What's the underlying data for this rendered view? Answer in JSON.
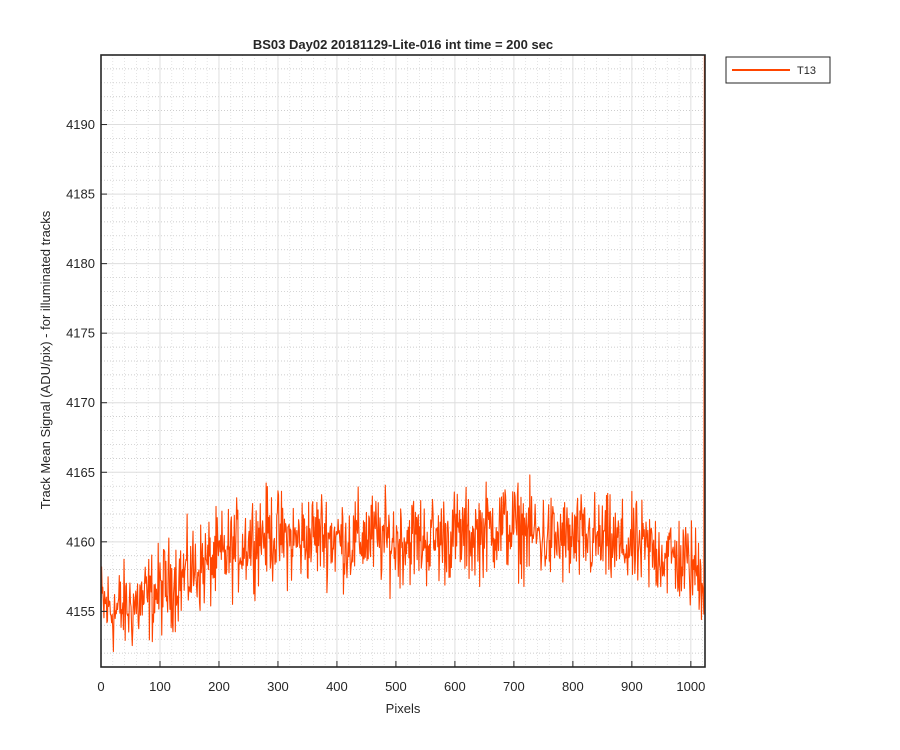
{
  "chart_data": {
    "type": "line",
    "title": "BS03 Day02 20181129-Lite-016 int time = 200 sec",
    "xlabel": "Pixels",
    "ylabel": "Track Mean Signal (ADU/pix) - for illuminated tracks",
    "xlim": [
      0,
      1024
    ],
    "ylim": [
      4151,
      4195
    ],
    "xticks": [
      0,
      100,
      200,
      300,
      400,
      500,
      600,
      700,
      800,
      900,
      1000
    ],
    "yticks": [
      4155,
      4160,
      4165,
      4170,
      4175,
      4180,
      4185,
      4190
    ],
    "grid": "major and minor (dotted)",
    "legend_position": "outside top-right",
    "series": [
      {
        "name": "T13",
        "color": "#ff4500",
        "note_values": "approximate trend; noisy trace with ~±2.5 ADU jitter around the mean",
        "x": [
          0,
          25,
          50,
          75,
          100,
          125,
          150,
          175,
          200,
          225,
          250,
          275,
          300,
          325,
          350,
          375,
          400,
          425,
          450,
          475,
          500,
          525,
          550,
          575,
          600,
          625,
          650,
          675,
          700,
          725,
          750,
          775,
          800,
          825,
          850,
          875,
          900,
          925,
          950,
          975,
          1000,
          1020,
          1023
        ],
        "values": [
          4155.5,
          4155.0,
          4155.3,
          4155.8,
          4156.5,
          4157.2,
          4157.8,
          4158.3,
          4158.8,
          4159.4,
          4160.1,
          4160.6,
          4160.4,
          4160.0,
          4160.3,
          4160.6,
          4160.2,
          4160.0,
          4160.4,
          4160.2,
          4160.0,
          4160.3,
          4160.1,
          4160.2,
          4160.5,
          4160.3,
          4160.8,
          4161.2,
          4161.0,
          4160.7,
          4160.3,
          4160.1,
          4160.0,
          4160.2,
          4160.0,
          4159.7,
          4159.6,
          4159.4,
          4159.2,
          4158.8,
          4158.3,
          4157.5,
          4195.0
        ]
      }
    ]
  }
}
